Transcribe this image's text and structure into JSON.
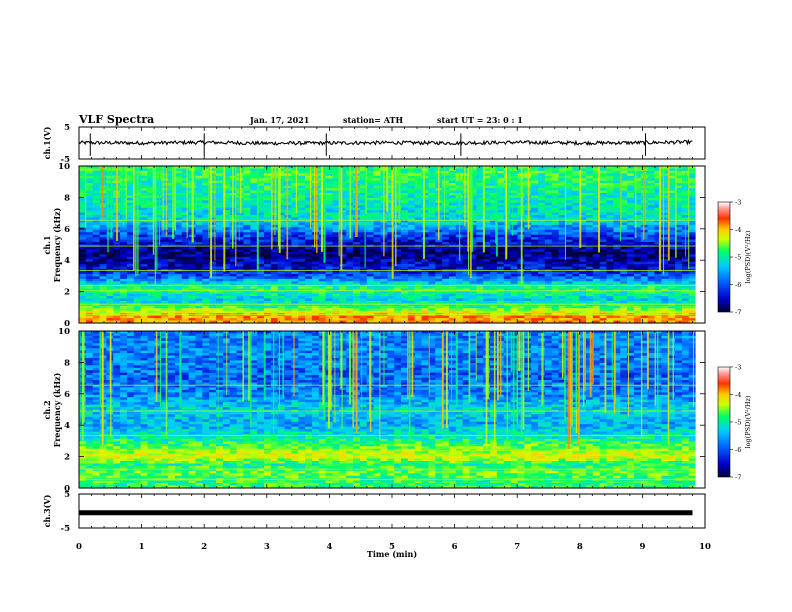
{
  "header": {
    "title": "VLF Spectra",
    "date": "Jan. 17, 2021",
    "station": "station= ATH",
    "start": "start  UT =   23: 0  : 1"
  },
  "colors": {
    "waveform": "#000000",
    "colormap": [
      "#000033",
      "#0000cc",
      "#0066ff",
      "#00ccff",
      "#00ff66",
      "#ccff00",
      "#ffcc00",
      "#ff3300",
      "#ff0000",
      "#ffffff"
    ]
  },
  "chart_data": [
    {
      "type": "line",
      "panel": "ch1-waveform",
      "ylabel": "ch.1(V)",
      "ylim": [
        -5,
        5
      ],
      "y_ticks": [
        "5",
        "-5"
      ],
      "x": [
        0,
        1,
        2,
        3,
        4,
        5,
        6,
        7,
        8,
        9,
        9.8
      ],
      "values": [
        0.1,
        0.0,
        0.2,
        -0.1,
        0.0,
        0.1,
        0.0,
        0.2,
        0.0,
        0.1,
        0.3
      ]
    },
    {
      "type": "heatmap",
      "panel": "ch1-spectrogram",
      "ylabel": "ch.1\nFrequency  (kHz)",
      "ylim": [
        0,
        10
      ],
      "y_ticks": [
        "0",
        "2",
        "4",
        "6",
        "8",
        "10"
      ],
      "colorbar": {
        "label": "log(PSD)(V²/Hz)",
        "range": [
          -7,
          -3
        ],
        "ticks": [
          "-3",
          "-4",
          "-5",
          "-6",
          "-7"
        ]
      },
      "band_levels_khz": [
        {
          "f": 0.5,
          "v": -4.2
        },
        {
          "f": 1.0,
          "v": -5.2
        },
        {
          "f": 1.5,
          "v": -5.6
        },
        {
          "f": 2.2,
          "v": -5.2
        },
        {
          "f": 3.0,
          "v": -6.2
        },
        {
          "f": 3.8,
          "v": -6.6
        },
        {
          "f": 4.5,
          "v": -6.8
        },
        {
          "f": 5.5,
          "v": -6.3
        },
        {
          "f": 6.5,
          "v": -5.6
        },
        {
          "f": 8.0,
          "v": -5.4
        },
        {
          "f": 9.5,
          "v": -5.2
        }
      ]
    },
    {
      "type": "heatmap",
      "panel": "ch2-spectrogram",
      "ylabel": "ch.2\nFrequency  (kHz)",
      "ylim": [
        0,
        10
      ],
      "y_ticks": [
        "0",
        "2",
        "4",
        "6",
        "8",
        "10"
      ],
      "colorbar": {
        "label": "log(PSD)(V²/Hz)",
        "range": [
          -7,
          -3
        ],
        "ticks": [
          "-3",
          "-4",
          "-5",
          "-6",
          "-7"
        ]
      },
      "band_levels_khz": [
        {
          "f": 0.5,
          "v": -5.2
        },
        {
          "f": 1.0,
          "v": -5.0
        },
        {
          "f": 1.5,
          "v": -5.3
        },
        {
          "f": 2.0,
          "v": -4.6
        },
        {
          "f": 3.0,
          "v": -5.3
        },
        {
          "f": 4.0,
          "v": -5.8
        },
        {
          "f": 5.0,
          "v": -5.6
        },
        {
          "f": 6.0,
          "v": -6.0
        },
        {
          "f": 7.0,
          "v": -6.1
        },
        {
          "f": 8.5,
          "v": -6.0
        },
        {
          "f": 9.5,
          "v": -6.0
        }
      ]
    },
    {
      "type": "line",
      "panel": "ch3-waveform",
      "ylabel": "ch.3(V)",
      "ylim": [
        -5,
        5
      ],
      "y_ticks": [
        "5",
        "-5"
      ],
      "x": [
        0,
        9.8
      ],
      "values": [
        -0.5,
        -0.5
      ]
    }
  ],
  "x_axis": {
    "label": "Time  (min)",
    "range": [
      0,
      10
    ],
    "ticks": [
      "0",
      "1",
      "2",
      "3",
      "4",
      "5",
      "6",
      "7",
      "8",
      "9",
      "10"
    ]
  }
}
